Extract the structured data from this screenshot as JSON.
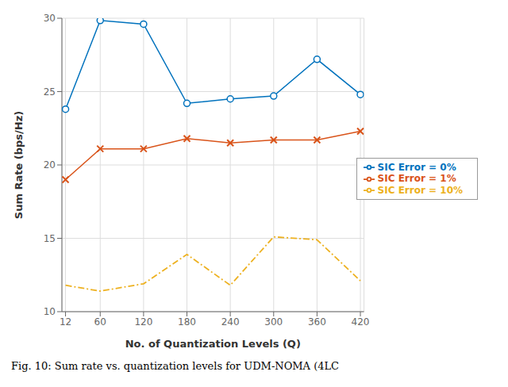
{
  "chart_data": {
    "type": "line",
    "x": [
      12,
      60,
      120,
      180,
      240,
      300,
      360,
      420
    ],
    "series": [
      {
        "name": "SIC Error = 0%",
        "color": "#0072BD",
        "marker": "circle",
        "line_style": "solid",
        "values": [
          23.8,
          29.85,
          29.6,
          24.2,
          24.5,
          24.7,
          27.2,
          24.8
        ]
      },
      {
        "name": "SIC Error = 1%",
        "color": "#D95319",
        "marker": "x",
        "line_style": "solid",
        "values": [
          19.0,
          21.1,
          21.1,
          21.8,
          21.5,
          21.7,
          21.7,
          22.3
        ]
      },
      {
        "name": "SIC Error = 10%",
        "color": "#EDB120",
        "marker": "none",
        "line_style": "dashdot",
        "values": [
          11.8,
          11.4,
          11.9,
          13.9,
          11.8,
          15.1,
          14.9,
          12.1
        ]
      }
    ],
    "xlabel": "No. of Quantization Levels (Q)",
    "ylabel": "Sum Rate (bps/Hz)",
    "xlim": [
      7,
      425
    ],
    "ylim": [
      10,
      30
    ],
    "xticks": [
      12,
      60,
      120,
      180,
      240,
      300,
      360,
      420
    ],
    "yticks": [
      10,
      15,
      20,
      25,
      30
    ],
    "grid": true,
    "legend": "lower right",
    "caption": "Fig. 10: Sum rate vs. quantization levels for UDM-NOMA (4LC"
  }
}
